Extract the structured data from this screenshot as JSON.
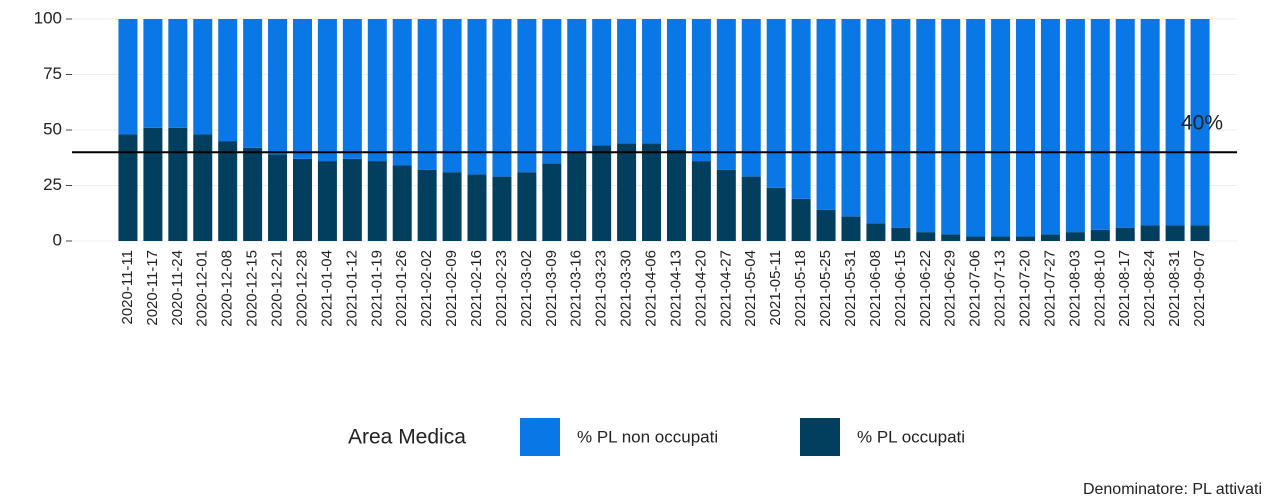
{
  "chart_data": {
    "type": "stacked_bar",
    "categories": [
      "2020-11-11",
      "2020-11-17",
      "2020-11-24",
      "2020-12-01",
      "2020-12-08",
      "2020-12-15",
      "2020-12-21",
      "2020-12-28",
      "2021-01-04",
      "2021-01-12",
      "2021-01-19",
      "2021-01-26",
      "2021-02-02",
      "2021-02-09",
      "2021-02-16",
      "2021-02-23",
      "2021-03-02",
      "2021-03-09",
      "2021-03-16",
      "2021-03-23",
      "2021-03-30",
      "2021-04-06",
      "2021-04-13",
      "2021-04-20",
      "2021-04-27",
      "2021-05-04",
      "2021-05-11",
      "2021-05-18",
      "2021-05-25",
      "2021-05-31",
      "2021-06-08",
      "2021-06-15",
      "2021-06-22",
      "2021-06-29",
      "2021-07-06",
      "2021-07-13",
      "2021-07-20",
      "2021-07-27",
      "2021-08-03",
      "2021-08-10",
      "2021-08-17",
      "2021-08-24",
      "2021-08-31",
      "2021-09-07"
    ],
    "series": [
      {
        "name": "% PL non occupati",
        "color": "#0a77e6",
        "values": [
          52,
          49,
          49,
          52,
          55,
          58,
          61,
          63,
          64,
          63,
          64,
          66,
          68,
          69,
          70,
          71,
          69,
          65,
          60,
          57,
          56,
          56,
          59,
          64,
          68,
          71,
          76,
          81,
          86,
          89,
          92,
          94,
          96,
          97,
          98,
          98,
          98,
          97,
          96,
          95,
          94,
          93,
          93,
          93
        ]
      },
      {
        "name": "% PL occupati",
        "color": "#023f5f",
        "values": [
          48,
          51,
          51,
          48,
          45,
          42,
          39,
          37,
          36,
          37,
          36,
          34,
          32,
          31,
          30,
          29,
          31,
          35,
          40,
          43,
          44,
          44,
          41,
          36,
          32,
          29,
          24,
          19,
          14,
          11,
          8,
          6,
          4,
          3,
          2,
          2,
          2,
          3,
          4,
          5,
          6,
          7,
          7,
          7
        ]
      }
    ],
    "ylim": [
      0,
      100
    ],
    "yticks": [
      0,
      25,
      50,
      75,
      100
    ],
    "grid": true,
    "hline": {
      "value": 40,
      "label": "40%"
    },
    "legend_title": "Area Medica",
    "legend": "bottom",
    "caption": "Denominatore: PL attivati"
  }
}
